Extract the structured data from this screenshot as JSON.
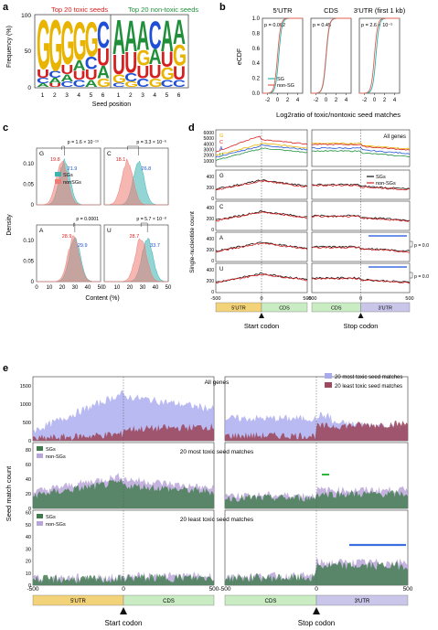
{
  "panels": {
    "a": {
      "letter": "a",
      "left_title": "Top 20 toxic seeds",
      "right_title": "Top 20 non-toxic seeds",
      "ylabel": "Frequency (%)",
      "xlabel": "Seed position",
      "yticks": [
        "0",
        "50",
        "100"
      ],
      "xticks": [
        "1",
        "2",
        "3",
        "4",
        "5",
        "6",
        "1",
        "2",
        "3",
        "4",
        "5",
        "6"
      ],
      "left_top": [
        "G",
        "G",
        "G",
        "G",
        "G",
        "C"
      ],
      "right_top": [
        "A",
        "A",
        "A",
        "C",
        "A",
        "A"
      ],
      "colors": {
        "G": "#e8b400",
        "A": "#1f8f3a",
        "C": "#1f4fd6",
        "U": "#d62020"
      }
    },
    "b": {
      "letter": "b",
      "cols": [
        {
          "title": "5′UTR",
          "p": "p = 0.002"
        },
        {
          "title": "CDS",
          "p": "p = 0.45"
        },
        {
          "title": "3′UTR (first 1 kb)",
          "p": "p = 2.6 × 10⁻⁵"
        }
      ],
      "ylabel": "eCDF",
      "xlabel": "Log2ratio of toxic/nontoxic seed matches",
      "yticks": [
        "0.0",
        "0.2",
        "0.4",
        "0.6",
        "0.8",
        "1.0"
      ],
      "xticks": [
        "-2",
        "0",
        "2",
        "4"
      ],
      "legend": [
        "SG",
        "non-SG"
      ],
      "colors": {
        "SG": "#2ab0a8",
        "nonSG": "#e06050"
      }
    },
    "c": {
      "letter": "c",
      "ylabel": "Density",
      "xlabel": "Content (%)",
      "legend": [
        "SGs",
        "nonSGs"
      ],
      "xticks": [
        "0",
        "10",
        "20",
        "30",
        "40",
        "50"
      ],
      "yticks_top": [
        "0",
        "0.05",
        "0.10"
      ],
      "yticks_bottom": [
        "0",
        "0.05",
        "0.10"
      ],
      "subs": [
        {
          "letter": "G",
          "p": "p = 1.6 × 10⁻¹⁰",
          "v1": "19.8",
          "v2": "21.9"
        },
        {
          "letter": "C",
          "p": "p = 3.3 × 10⁻⁶",
          "v1": "18.1",
          "v2": "26.8"
        },
        {
          "letter": "A",
          "p": "p = 0.0001",
          "v1": "28.9",
          "v2": "29.9"
        },
        {
          "letter": "U",
          "p": "p = 5.7 × 10⁻⁸",
          "v1": "28.7",
          "v2": "33.7"
        }
      ]
    },
    "d": {
      "letter": "d",
      "ylabel": "Single-nucleotide count",
      "all_genes": "All genes",
      "legend_all": [
        "G",
        "C",
        "A",
        "U"
      ],
      "legend_sg": [
        "SGs",
        "non-SGs"
      ],
      "rows": [
        "G",
        "C",
        "A",
        "U"
      ],
      "yticks_all": [
        "0",
        "1000",
        "2000",
        "3000",
        "4000",
        "5000",
        "6000"
      ],
      "yticks_row": [
        "0",
        "200",
        "400"
      ],
      "xticks_left": [
        "-500",
        "0",
        "500"
      ],
      "xticks_right": [
        "-500",
        "0",
        "500"
      ],
      "p_labels": [
        "p = 0.0",
        "p = 0.0"
      ],
      "regions": [
        "5′UTR",
        "CDS",
        "CDS",
        "3′UTR"
      ],
      "start_codon": "Start codon",
      "stop_codon": "Stop codon"
    },
    "e": {
      "letter": "e",
      "ylabel": "Seed match count",
      "all_genes": "All genes",
      "legend_all": [
        "20 most toxic seed matches",
        "20 least toxic seed matches"
      ],
      "mid_title": "20 most toxic seed matches",
      "bot_title": "20 least toxic seed matches",
      "legend_sg": [
        "SGs",
        "non-SGs"
      ],
      "yticks_top": [
        "0",
        "500",
        "1000",
        "1500"
      ],
      "yticks_mid": [
        "0",
        "20",
        "40",
        "60",
        "80"
      ],
      "yticks_bot": [
        "0",
        "10",
        "20",
        "30",
        "40",
        "50",
        "60"
      ],
      "xticks_left": [
        "-500",
        "0",
        "500"
      ],
      "xticks_right": [
        "-500",
        "0",
        "500"
      ],
      "regions": [
        "5′UTR",
        "CDS",
        "CDS",
        "3′UTR"
      ],
      "start_codon": "Start codon",
      "stop_codon": "Stop codon"
    }
  }
}
